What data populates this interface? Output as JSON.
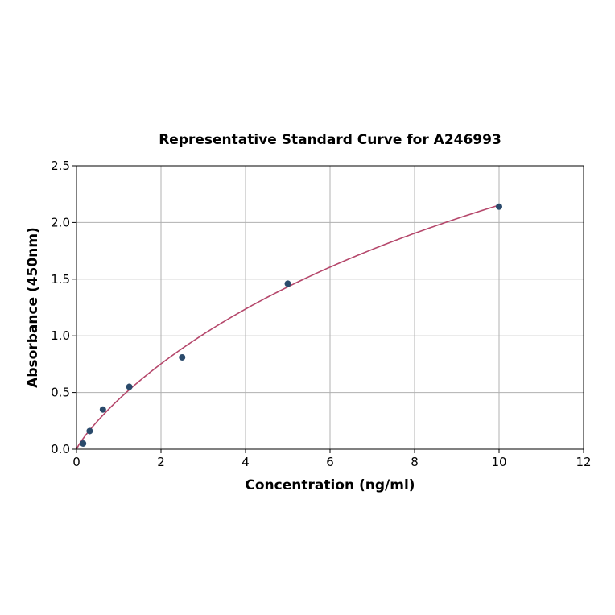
{
  "chart_data": {
    "type": "scatter",
    "title": "Representative Standard Curve for A246993",
    "xlabel": "Concentration (ng/ml)",
    "ylabel": "Absorbance (450nm)",
    "xlim": [
      0,
      12
    ],
    "ylim": [
      0,
      2.5
    ],
    "xticks": [
      "0",
      "2",
      "4",
      "6",
      "8",
      "10",
      "12"
    ],
    "yticks": [
      "0.0",
      "0.5",
      "1.0",
      "1.5",
      "2.0",
      "2.5"
    ],
    "grid": true,
    "points": {
      "x": [
        0.156,
        0.3125,
        0.625,
        1.25,
        2.5,
        5,
        10
      ],
      "y": [
        0.05,
        0.16,
        0.35,
        0.55,
        0.81,
        1.46,
        2.14
      ]
    },
    "fit_curve": true,
    "colors": {
      "points": "#2a4a6b",
      "curve": "#b5476b",
      "grid": "#b0b0b0"
    }
  }
}
